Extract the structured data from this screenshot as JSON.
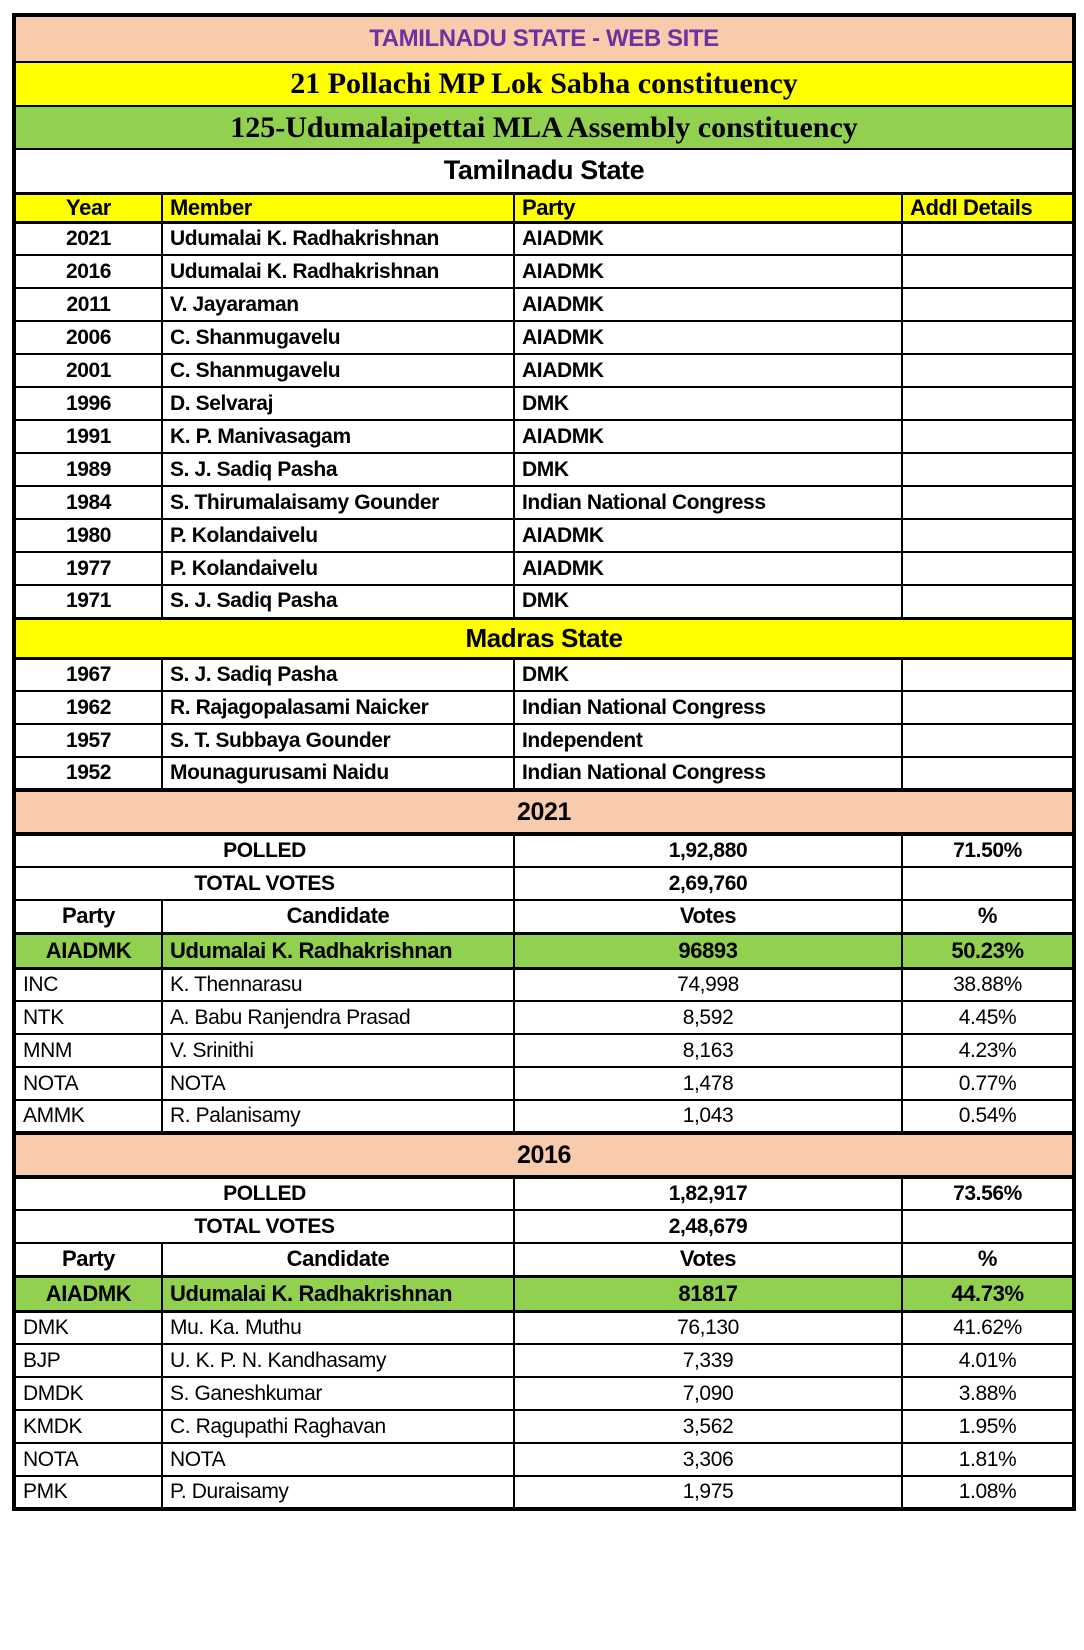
{
  "page": {
    "banner": "TAMILNADU STATE - WEB SITE",
    "mp_constituency": "21 Pollachi MP Lok Sabha constituency",
    "mla_constituency": "125-Udumalaipettai MLA Assembly constituency"
  },
  "colors": {
    "banner_bg": "#F8CBAD",
    "banner_text": "#7030A0",
    "highlight_yellow": "#FFFF00",
    "winner_green": "#92D050",
    "section_peach": "#F8CBAD",
    "text": "#000000"
  },
  "history": {
    "region1_label": "Tamilnadu State",
    "region2_label": "Madras State",
    "headers": [
      "Year",
      "Member",
      "Party",
      "Addl Details"
    ],
    "tamilnadu_rows": [
      {
        "year": "2021",
        "member": "Udumalai K. Radhakrishnan",
        "party": "AIADMK",
        "addl": ""
      },
      {
        "year": "2016",
        "member": "Udumalai K. Radhakrishnan",
        "party": "AIADMK",
        "addl": ""
      },
      {
        "year": "2011",
        "member": "V. Jayaraman",
        "party": "AIADMK",
        "addl": ""
      },
      {
        "year": "2006",
        "member": "C. Shanmugavelu",
        "party": "AIADMK",
        "addl": ""
      },
      {
        "year": "2001",
        "member": "C. Shanmugavelu",
        "party": "AIADMK",
        "addl": ""
      },
      {
        "year": "1996",
        "member": "D. Selvaraj",
        "party": "DMK",
        "addl": ""
      },
      {
        "year": "1991",
        "member": "K. P. Manivasagam",
        "party": "AIADMK",
        "addl": ""
      },
      {
        "year": "1989",
        "member": "S. J. Sadiq Pasha",
        "party": "DMK",
        "addl": ""
      },
      {
        "year": "1984",
        "member": "S. Thirumalaisamy Gounder",
        "party": "Indian National Congress",
        "addl": ""
      },
      {
        "year": "1980",
        "member": "P. Kolandaivelu",
        "party": "AIADMK",
        "addl": ""
      },
      {
        "year": "1977",
        "member": "P. Kolandaivelu",
        "party": "AIADMK",
        "addl": ""
      },
      {
        "year": "1971",
        "member": "S. J. Sadiq Pasha",
        "party": "DMK",
        "addl": ""
      }
    ],
    "madras_rows": [
      {
        "year": "1967",
        "member": "S. J. Sadiq Pasha",
        "party": "DMK",
        "addl": ""
      },
      {
        "year": "1962",
        "member": "R. Rajagopalasami Naicker",
        "party": "Indian National Congress",
        "addl": ""
      },
      {
        "year": "1957",
        "member": "S. T. Subbaya Gounder",
        "party": "Independent",
        "addl": ""
      },
      {
        "year": "1952",
        "member": "Mounagurusami Naidu",
        "party": "Indian National Congress",
        "addl": ""
      }
    ]
  },
  "labels": {
    "polled": "POLLED",
    "total_votes": "TOTAL VOTES",
    "result_headers": [
      "Party",
      "Candidate",
      "Votes",
      "%"
    ]
  },
  "elections": [
    {
      "year": "2021",
      "polled_votes": "1,92,880",
      "polled_pct": "71.50%",
      "total_votes": "2,69,760",
      "winner": {
        "party": "AIADMK",
        "candidate": "Udumalai K. Radhakrishnan",
        "votes": "96893",
        "pct": "50.23%"
      },
      "rows": [
        {
          "party": "INC",
          "candidate": "K. Thennarasu",
          "votes": "74,998",
          "pct": "38.88%"
        },
        {
          "party": "NTK",
          "candidate": "A. Babu Ranjendra Prasad",
          "votes": "8,592",
          "pct": "4.45%"
        },
        {
          "party": "MNM",
          "candidate": "V. Srinithi",
          "votes": "8,163",
          "pct": "4.23%"
        },
        {
          "party": "NOTA",
          "candidate": "NOTA",
          "votes": "1,478",
          "pct": "0.77%"
        },
        {
          "party": "AMMK",
          "candidate": "R. Palanisamy",
          "votes": "1,043",
          "pct": "0.54%"
        }
      ]
    },
    {
      "year": "2016",
      "polled_votes": "1,82,917",
      "polled_pct": "73.56%",
      "total_votes": "2,48,679",
      "winner": {
        "party": "AIADMK",
        "candidate": "Udumalai K. Radhakrishnan",
        "votes": "81817",
        "pct": "44.73%"
      },
      "rows": [
        {
          "party": "DMK",
          "candidate": "Mu. Ka. Muthu",
          "votes": "76,130",
          "pct": "41.62%"
        },
        {
          "party": "BJP",
          "candidate": "U. K. P. N. Kandhasamy",
          "votes": "7,339",
          "pct": "4.01%"
        },
        {
          "party": "DMDK",
          "candidate": "S. Ganeshkumar",
          "votes": "7,090",
          "pct": "3.88%"
        },
        {
          "party": "KMDK",
          "candidate": "C. Ragupathi Raghavan",
          "votes": "3,562",
          "pct": "1.95%"
        },
        {
          "party": "NOTA",
          "candidate": "NOTA",
          "votes": "3,306",
          "pct": "1.81%"
        },
        {
          "party": "PMK",
          "candidate": "P. Duraisamy",
          "votes": "1,975",
          "pct": "1.08%"
        }
      ]
    }
  ]
}
